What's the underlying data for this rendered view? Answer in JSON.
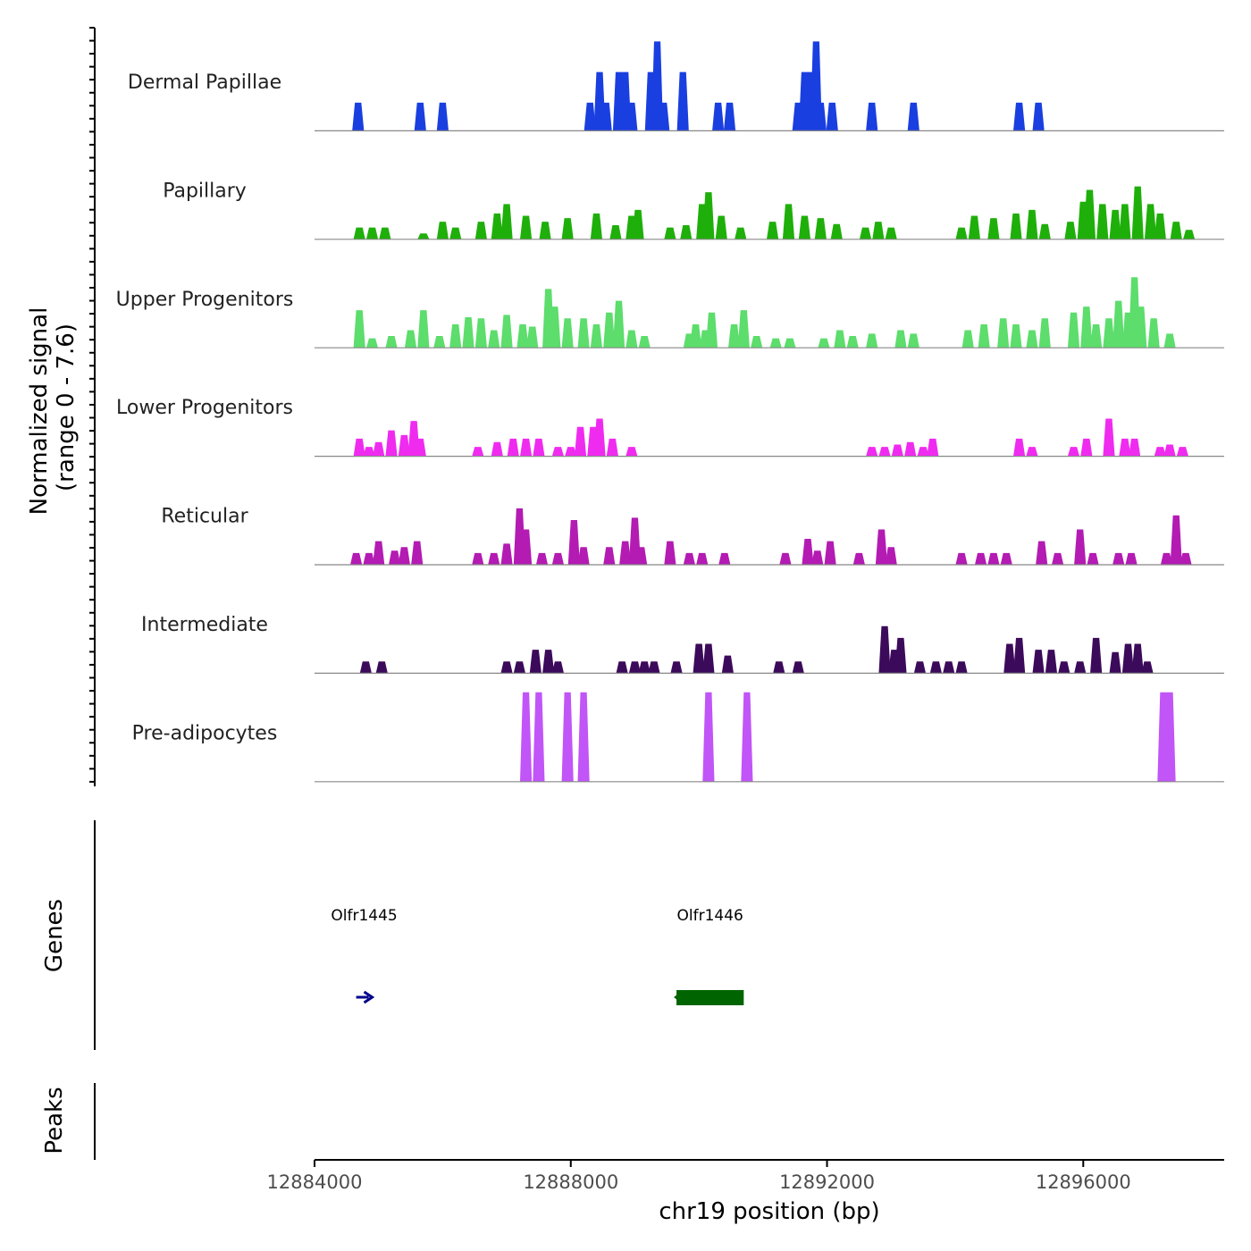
{
  "chart_data": {
    "type": "area",
    "title": "",
    "xlabel": "chr19 position (bp)",
    "ylabel_line1": "Normalized signal",
    "ylabel_line2": "(range 0 - 7.6)",
    "ylim": [
      0,
      7.6
    ],
    "xlim": [
      12884000,
      12898200
    ],
    "x_ticks": [
      12884000,
      12888000,
      12892000,
      12896000
    ],
    "x_tick_labels": [
      "12884000",
      "12888000",
      "12892000",
      "12896000"
    ],
    "bin_size_bp": 100,
    "series": [
      {
        "name": "Dermal Papillae",
        "color": "#1A3FE0",
        "peaks": [
          {
            "x": 12884680,
            "y": 2.4
          },
          {
            "x": 12885650,
            "y": 2.4
          },
          {
            "x": 12886000,
            "y": 2.4
          },
          {
            "x": 12888300,
            "y": 2.4
          },
          {
            "x": 12888450,
            "y": 5.0
          },
          {
            "x": 12888550,
            "y": 2.4
          },
          {
            "x": 12888750,
            "y": 5.0
          },
          {
            "x": 12888850,
            "y": 5.0
          },
          {
            "x": 12888950,
            "y": 2.4
          },
          {
            "x": 12889250,
            "y": 5.0
          },
          {
            "x": 12889350,
            "y": 7.6
          },
          {
            "x": 12889450,
            "y": 2.4
          },
          {
            "x": 12889750,
            "y": 5.0
          },
          {
            "x": 12890300,
            "y": 2.4
          },
          {
            "x": 12890480,
            "y": 2.4
          },
          {
            "x": 12891550,
            "y": 2.4
          },
          {
            "x": 12891650,
            "y": 5.0
          },
          {
            "x": 12891750,
            "y": 5.0
          },
          {
            "x": 12891830,
            "y": 7.6
          },
          {
            "x": 12891900,
            "y": 2.4
          },
          {
            "x": 12892080,
            "y": 2.4
          },
          {
            "x": 12892700,
            "y": 2.4
          },
          {
            "x": 12893350,
            "y": 2.4
          },
          {
            "x": 12895000,
            "y": 2.4
          },
          {
            "x": 12895300,
            "y": 2.4
          }
        ]
      },
      {
        "name": "Papillary",
        "color": "#1FAF0A",
        "peaks": [
          {
            "x": 12884700,
            "y": 1.0
          },
          {
            "x": 12884900,
            "y": 1.0
          },
          {
            "x": 12885100,
            "y": 1.0
          },
          {
            "x": 12885700,
            "y": 0.5
          },
          {
            "x": 12886000,
            "y": 1.5
          },
          {
            "x": 12886200,
            "y": 1.0
          },
          {
            "x": 12886600,
            "y": 1.5
          },
          {
            "x": 12886850,
            "y": 2.2
          },
          {
            "x": 12887000,
            "y": 3.0
          },
          {
            "x": 12887300,
            "y": 2.0
          },
          {
            "x": 12887600,
            "y": 1.5
          },
          {
            "x": 12887950,
            "y": 1.8
          },
          {
            "x": 12888400,
            "y": 2.2
          },
          {
            "x": 12888700,
            "y": 1.2
          },
          {
            "x": 12888950,
            "y": 2.0
          },
          {
            "x": 12889050,
            "y": 2.5
          },
          {
            "x": 12889550,
            "y": 1.0
          },
          {
            "x": 12889800,
            "y": 1.2
          },
          {
            "x": 12890050,
            "y": 3.0
          },
          {
            "x": 12890150,
            "y": 4.0
          },
          {
            "x": 12890350,
            "y": 2.0
          },
          {
            "x": 12890650,
            "y": 1.0
          },
          {
            "x": 12891150,
            "y": 1.5
          },
          {
            "x": 12891400,
            "y": 3.0
          },
          {
            "x": 12891650,
            "y": 2.0
          },
          {
            "x": 12891900,
            "y": 1.8
          },
          {
            "x": 12892150,
            "y": 1.3
          },
          {
            "x": 12892600,
            "y": 1.0
          },
          {
            "x": 12892800,
            "y": 1.5
          },
          {
            "x": 12893000,
            "y": 1.0
          },
          {
            "x": 12894100,
            "y": 1.0
          },
          {
            "x": 12894300,
            "y": 2.0
          },
          {
            "x": 12894600,
            "y": 1.8
          },
          {
            "x": 12894950,
            "y": 2.2
          },
          {
            "x": 12895200,
            "y": 2.5
          },
          {
            "x": 12895400,
            "y": 1.3
          },
          {
            "x": 12895800,
            "y": 1.5
          },
          {
            "x": 12896000,
            "y": 3.2
          },
          {
            "x": 12896100,
            "y": 4.2
          },
          {
            "x": 12896300,
            "y": 3.0
          },
          {
            "x": 12896500,
            "y": 2.5
          },
          {
            "x": 12896650,
            "y": 3.0
          },
          {
            "x": 12896850,
            "y": 4.5
          },
          {
            "x": 12897050,
            "y": 3.0
          },
          {
            "x": 12897200,
            "y": 2.2
          },
          {
            "x": 12897450,
            "y": 1.5
          },
          {
            "x": 12897650,
            "y": 0.8
          }
        ]
      },
      {
        "name": "Upper Progenitors",
        "color": "#5CDD6C",
        "peaks": [
          {
            "x": 12884700,
            "y": 3.2
          },
          {
            "x": 12884900,
            "y": 0.8
          },
          {
            "x": 12885200,
            "y": 1.0
          },
          {
            "x": 12885500,
            "y": 1.5
          },
          {
            "x": 12885700,
            "y": 3.2
          },
          {
            "x": 12885950,
            "y": 1.0
          },
          {
            "x": 12886200,
            "y": 2.0
          },
          {
            "x": 12886400,
            "y": 2.6
          },
          {
            "x": 12886600,
            "y": 2.5
          },
          {
            "x": 12886800,
            "y": 1.5
          },
          {
            "x": 12887000,
            "y": 2.8
          },
          {
            "x": 12887250,
            "y": 2.0
          },
          {
            "x": 12887400,
            "y": 1.8
          },
          {
            "x": 12887650,
            "y": 5.0
          },
          {
            "x": 12887750,
            "y": 3.5
          },
          {
            "x": 12887950,
            "y": 2.5
          },
          {
            "x": 12888200,
            "y": 2.5
          },
          {
            "x": 12888400,
            "y": 2.0
          },
          {
            "x": 12888600,
            "y": 3.0
          },
          {
            "x": 12888750,
            "y": 4.0
          },
          {
            "x": 12888950,
            "y": 1.5
          },
          {
            "x": 12889150,
            "y": 1.0
          },
          {
            "x": 12889850,
            "y": 1.2
          },
          {
            "x": 12889950,
            "y": 2.0
          },
          {
            "x": 12890100,
            "y": 1.5
          },
          {
            "x": 12890200,
            "y": 3.0
          },
          {
            "x": 12890550,
            "y": 2.0
          },
          {
            "x": 12890700,
            "y": 3.2
          },
          {
            "x": 12890900,
            "y": 1.0
          },
          {
            "x": 12891200,
            "y": 0.8
          },
          {
            "x": 12891420,
            "y": 0.8
          },
          {
            "x": 12891950,
            "y": 0.8
          },
          {
            "x": 12892200,
            "y": 1.5
          },
          {
            "x": 12892400,
            "y": 1.0
          },
          {
            "x": 12892700,
            "y": 1.2
          },
          {
            "x": 12893150,
            "y": 1.5
          },
          {
            "x": 12893350,
            "y": 1.2
          },
          {
            "x": 12894200,
            "y": 1.5
          },
          {
            "x": 12894450,
            "y": 2.0
          },
          {
            "x": 12894750,
            "y": 2.5
          },
          {
            "x": 12894950,
            "y": 2.0
          },
          {
            "x": 12895200,
            "y": 1.5
          },
          {
            "x": 12895400,
            "y": 2.5
          },
          {
            "x": 12895850,
            "y": 3.0
          },
          {
            "x": 12896050,
            "y": 3.5
          },
          {
            "x": 12896200,
            "y": 2.0
          },
          {
            "x": 12896400,
            "y": 2.5
          },
          {
            "x": 12896550,
            "y": 4.0
          },
          {
            "x": 12896700,
            "y": 3.0
          },
          {
            "x": 12896800,
            "y": 6.0
          },
          {
            "x": 12896900,
            "y": 3.5
          },
          {
            "x": 12897100,
            "y": 2.5
          },
          {
            "x": 12897350,
            "y": 1.2
          }
        ]
      },
      {
        "name": "Lower Progenitors",
        "color": "#F02BF0",
        "peaks": [
          {
            "x": 12884700,
            "y": 1.5
          },
          {
            "x": 12884850,
            "y": 0.8
          },
          {
            "x": 12885000,
            "y": 1.2
          },
          {
            "x": 12885200,
            "y": 2.2
          },
          {
            "x": 12885400,
            "y": 1.8
          },
          {
            "x": 12885550,
            "y": 3.0
          },
          {
            "x": 12885650,
            "y": 1.5
          },
          {
            "x": 12886550,
            "y": 0.8
          },
          {
            "x": 12886850,
            "y": 1.2
          },
          {
            "x": 12887100,
            "y": 1.5
          },
          {
            "x": 12887300,
            "y": 1.5
          },
          {
            "x": 12887500,
            "y": 1.5
          },
          {
            "x": 12887800,
            "y": 0.8
          },
          {
            "x": 12888000,
            "y": 0.8
          },
          {
            "x": 12888150,
            "y": 2.5
          },
          {
            "x": 12888350,
            "y": 2.5
          },
          {
            "x": 12888450,
            "y": 3.2
          },
          {
            "x": 12888650,
            "y": 1.5
          },
          {
            "x": 12888950,
            "y": 0.8
          },
          {
            "x": 12892700,
            "y": 0.8
          },
          {
            "x": 12892900,
            "y": 0.8
          },
          {
            "x": 12893100,
            "y": 1.0
          },
          {
            "x": 12893300,
            "y": 1.2
          },
          {
            "x": 12893500,
            "y": 0.8
          },
          {
            "x": 12893650,
            "y": 1.5
          },
          {
            "x": 12895000,
            "y": 1.5
          },
          {
            "x": 12895200,
            "y": 0.8
          },
          {
            "x": 12895850,
            "y": 0.8
          },
          {
            "x": 12896050,
            "y": 1.5
          },
          {
            "x": 12896400,
            "y": 3.2
          },
          {
            "x": 12896650,
            "y": 1.5
          },
          {
            "x": 12896800,
            "y": 1.5
          },
          {
            "x": 12897200,
            "y": 0.8
          },
          {
            "x": 12897350,
            "y": 1.0
          },
          {
            "x": 12897550,
            "y": 0.8
          }
        ]
      },
      {
        "name": "Reticular",
        "color": "#B31BB3",
        "peaks": [
          {
            "x": 12884650,
            "y": 1.0
          },
          {
            "x": 12884850,
            "y": 1.0
          },
          {
            "x": 12885000,
            "y": 2.0
          },
          {
            "x": 12885250,
            "y": 1.2
          },
          {
            "x": 12885400,
            "y": 1.5
          },
          {
            "x": 12885600,
            "y": 2.0
          },
          {
            "x": 12886550,
            "y": 1.0
          },
          {
            "x": 12886800,
            "y": 1.0
          },
          {
            "x": 12887000,
            "y": 1.8
          },
          {
            "x": 12887200,
            "y": 4.8
          },
          {
            "x": 12887300,
            "y": 3.0
          },
          {
            "x": 12887550,
            "y": 1.0
          },
          {
            "x": 12887800,
            "y": 1.0
          },
          {
            "x": 12888050,
            "y": 3.8
          },
          {
            "x": 12888200,
            "y": 1.5
          },
          {
            "x": 12888600,
            "y": 1.5
          },
          {
            "x": 12888850,
            "y": 2.0
          },
          {
            "x": 12889000,
            "y": 4.0
          },
          {
            "x": 12889100,
            "y": 1.5
          },
          {
            "x": 12889550,
            "y": 2.0
          },
          {
            "x": 12889850,
            "y": 1.0
          },
          {
            "x": 12890050,
            "y": 1.0
          },
          {
            "x": 12890400,
            "y": 1.0
          },
          {
            "x": 12891350,
            "y": 1.0
          },
          {
            "x": 12891700,
            "y": 2.2
          },
          {
            "x": 12891850,
            "y": 1.2
          },
          {
            "x": 12892050,
            "y": 2.0
          },
          {
            "x": 12892500,
            "y": 1.0
          },
          {
            "x": 12892850,
            "y": 3.0
          },
          {
            "x": 12893000,
            "y": 1.5
          },
          {
            "x": 12894100,
            "y": 1.0
          },
          {
            "x": 12894400,
            "y": 1.0
          },
          {
            "x": 12894600,
            "y": 1.0
          },
          {
            "x": 12894800,
            "y": 1.0
          },
          {
            "x": 12895350,
            "y": 2.0
          },
          {
            "x": 12895600,
            "y": 1.0
          },
          {
            "x": 12895950,
            "y": 3.0
          },
          {
            "x": 12896150,
            "y": 1.0
          },
          {
            "x": 12896550,
            "y": 1.0
          },
          {
            "x": 12896750,
            "y": 1.0
          },
          {
            "x": 12897300,
            "y": 1.0
          },
          {
            "x": 12897450,
            "y": 4.2
          },
          {
            "x": 12897600,
            "y": 1.0
          }
        ]
      },
      {
        "name": "Intermediate",
        "color": "#3C0A5A",
        "peaks": [
          {
            "x": 12884800,
            "y": 1.0
          },
          {
            "x": 12885050,
            "y": 1.0
          },
          {
            "x": 12887000,
            "y": 1.0
          },
          {
            "x": 12887200,
            "y": 1.0
          },
          {
            "x": 12887450,
            "y": 2.0
          },
          {
            "x": 12887650,
            "y": 2.0
          },
          {
            "x": 12887800,
            "y": 1.0
          },
          {
            "x": 12888800,
            "y": 1.0
          },
          {
            "x": 12889000,
            "y": 1.0
          },
          {
            "x": 12889150,
            "y": 1.0
          },
          {
            "x": 12889300,
            "y": 1.0
          },
          {
            "x": 12889650,
            "y": 1.0
          },
          {
            "x": 12890000,
            "y": 2.5
          },
          {
            "x": 12890150,
            "y": 2.5
          },
          {
            "x": 12890450,
            "y": 1.5
          },
          {
            "x": 12891250,
            "y": 1.0
          },
          {
            "x": 12891550,
            "y": 1.0
          },
          {
            "x": 12892900,
            "y": 4.0
          },
          {
            "x": 12893050,
            "y": 2.0
          },
          {
            "x": 12893150,
            "y": 3.0
          },
          {
            "x": 12893450,
            "y": 1.0
          },
          {
            "x": 12893700,
            "y": 1.0
          },
          {
            "x": 12893900,
            "y": 1.0
          },
          {
            "x": 12894100,
            "y": 1.0
          },
          {
            "x": 12894850,
            "y": 2.5
          },
          {
            "x": 12895000,
            "y": 3.0
          },
          {
            "x": 12895300,
            "y": 2.0
          },
          {
            "x": 12895500,
            "y": 2.0
          },
          {
            "x": 12895700,
            "y": 1.0
          },
          {
            "x": 12895950,
            "y": 1.0
          },
          {
            "x": 12896200,
            "y": 3.0
          },
          {
            "x": 12896500,
            "y": 1.8
          },
          {
            "x": 12896700,
            "y": 2.5
          },
          {
            "x": 12896850,
            "y": 2.5
          },
          {
            "x": 12897000,
            "y": 1.0
          }
        ]
      },
      {
        "name": "Pre-adipocytes",
        "color": "#C155F7",
        "peaks": [
          {
            "x": 12887300,
            "y": 7.6
          },
          {
            "x": 12887500,
            "y": 7.6
          },
          {
            "x": 12887950,
            "y": 7.6
          },
          {
            "x": 12888200,
            "y": 7.6
          },
          {
            "x": 12890150,
            "y": 7.6
          },
          {
            "x": 12890750,
            "y": 7.6
          },
          {
            "x": 12897300,
            "y": 7.6,
            "w": 2
          }
        ]
      }
    ],
    "genes": {
      "title": "Genes",
      "items": [
        {
          "name": "Olfr1445",
          "start": 12884650,
          "end": 12884900,
          "strand": "+",
          "color": "#00008B"
        },
        {
          "name": "Olfr1446",
          "start": 12889650,
          "end": 12890700,
          "strand": "-",
          "color": "#006400"
        }
      ]
    },
    "peaks_track": {
      "title": "Peaks",
      "items": []
    }
  }
}
